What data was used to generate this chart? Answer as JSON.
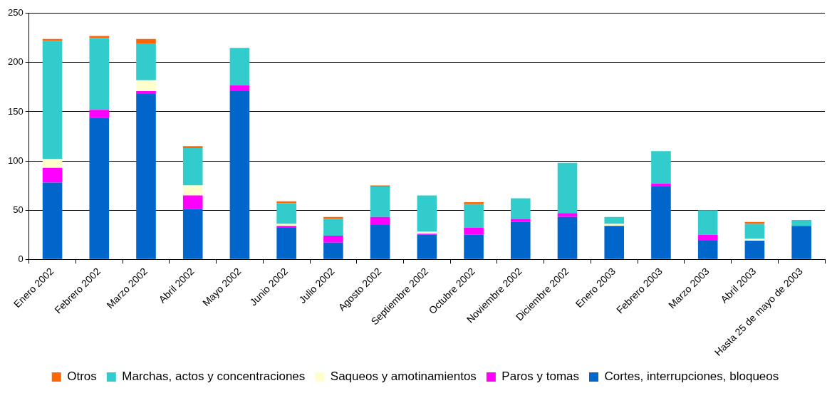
{
  "chart_data": {
    "type": "bar",
    "stacked": true,
    "categories": [
      "Enero 2002",
      "Febrero 2002",
      "Marzo 2002",
      "Abril 2002",
      "Mayo 2002",
      "Junio 2002",
      "Julio 2002",
      "Agosto 2002",
      "Septiembre 2002",
      "Octubre 2002",
      "Noviembre 2002",
      "Diciembre 2002",
      "Enero 2003",
      "Febrero 2003",
      "Marzo 2003",
      "Abril 2003",
      "Hasta 25 de mayo de 2003"
    ],
    "series": [
      {
        "name": "Cortes, interrupciones, bloqueos",
        "color": "#0066cc",
        "values": [
          78,
          144,
          168,
          51,
          171,
          32,
          17,
          35,
          25,
          25,
          38,
          43,
          34,
          74,
          19,
          19,
          34
        ]
      },
      {
        "name": "Paros y tomas",
        "color": "#ff00ff",
        "values": [
          15,
          8,
          3,
          14,
          6,
          2,
          7,
          8,
          1,
          7,
          3,
          4,
          0,
          3,
          6,
          0,
          0
        ]
      },
      {
        "name": "Saqueos y amotinamientos",
        "color": "#ffffcc",
        "values": [
          9,
          null,
          11,
          10,
          null,
          2,
          0,
          0,
          2,
          0,
          0,
          0,
          2,
          0,
          0,
          2,
          0
        ]
      },
      {
        "name": "Marchas, actos y concentraciones",
        "color": "#33cccc",
        "values": [
          120,
          73,
          37,
          38,
          38,
          21,
          17,
          31,
          37,
          24,
          21,
          51,
          7,
          33,
          25,
          15,
          6
        ]
      },
      {
        "name": "Otros",
        "color": "#ff6600",
        "values": [
          2,
          2,
          5,
          2,
          0,
          2,
          2,
          1,
          0,
          2,
          0,
          0,
          0,
          0,
          0,
          2,
          0
        ]
      }
    ],
    "ylim": [
      0,
      250
    ],
    "yticks": [
      0,
      50,
      100,
      150,
      200,
      250
    ],
    "grid": "y",
    "legend": "bottom"
  }
}
